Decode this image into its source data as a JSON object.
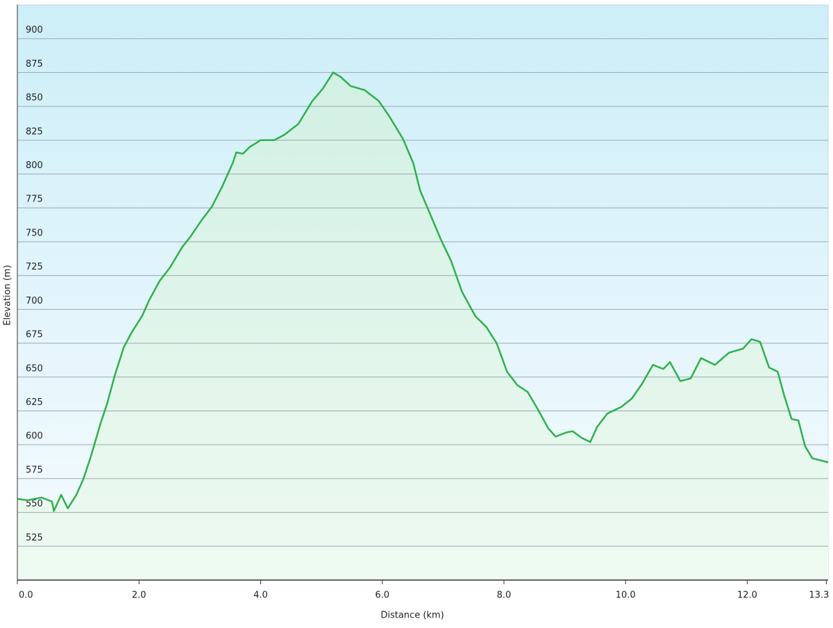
{
  "chart_data": {
    "type": "area",
    "x_label": "Distance  (km)",
    "y_label": "Elevation (m)",
    "x": [
      0,
      0.17,
      0.4,
      0.57,
      0.6,
      0.72,
      0.83,
      0.97,
      1.08,
      1.2,
      1.37,
      1.48,
      1.6,
      1.75,
      1.88,
      2.05,
      2.17,
      2.34,
      2.51,
      2.71,
      2.85,
      3.03,
      3.2,
      3.37,
      3.54,
      3.6,
      3.71,
      3.82,
      4.0,
      4.22,
      4.39,
      4.62,
      4.85,
      5.02,
      5.19,
      5.31,
      5.48,
      5.71,
      5.94,
      6.11,
      6.34,
      6.51,
      6.62,
      6.79,
      6.96,
      7.13,
      7.31,
      7.53,
      7.71,
      7.88,
      8.05,
      8.22,
      8.39,
      8.56,
      8.73,
      8.85,
      9.02,
      9.13,
      9.28,
      9.42,
      9.53,
      9.7,
      9.93,
      10.1,
      10.27,
      10.45,
      10.62,
      10.73,
      10.9,
      11.07,
      11.24,
      11.47,
      11.7,
      11.93,
      12.07,
      12.21,
      12.36,
      12.5,
      12.61,
      12.73,
      12.84,
      12.95,
      13.07,
      13.33
    ],
    "values": [
      560,
      559,
      561,
      558,
      551,
      563,
      553,
      563,
      574,
      590,
      616,
      631,
      651,
      672,
      683,
      695,
      707,
      721,
      731,
      746,
      754,
      766,
      776,
      791,
      808,
      816,
      815,
      820,
      825,
      825,
      829,
      837,
      854,
      863,
      875,
      872,
      865,
      862,
      854,
      843,
      826,
      808,
      788,
      770,
      752,
      736,
      713,
      695,
      687,
      675,
      654,
      644,
      639,
      626,
      612,
      606,
      609,
      610,
      605,
      602,
      613,
      623,
      628,
      634,
      645,
      659,
      656,
      661,
      647,
      649,
      664,
      659,
      668,
      671,
      678,
      676,
      657,
      654,
      636,
      619,
      618,
      599,
      590,
      587
    ],
    "color": "#2eb04c",
    "xlim": [
      0,
      13.33
    ],
    "ylim": [
      500,
      925
    ],
    "xticks": [
      {
        "value": 0,
        "label": "0.0"
      },
      {
        "value": 2,
        "label": "2.0"
      },
      {
        "value": 4,
        "label": "4.0"
      },
      {
        "value": 6,
        "label": "6.0"
      },
      {
        "value": 8,
        "label": "8.0"
      },
      {
        "value": 10,
        "label": "10.0"
      },
      {
        "value": 12,
        "label": "12.0"
      },
      13.3
    ],
    "yticks": [
      525,
      550,
      575,
      600,
      625,
      650,
      675,
      700,
      725,
      750,
      775,
      800,
      825,
      850,
      875,
      900
    ],
    "grid": true
  }
}
